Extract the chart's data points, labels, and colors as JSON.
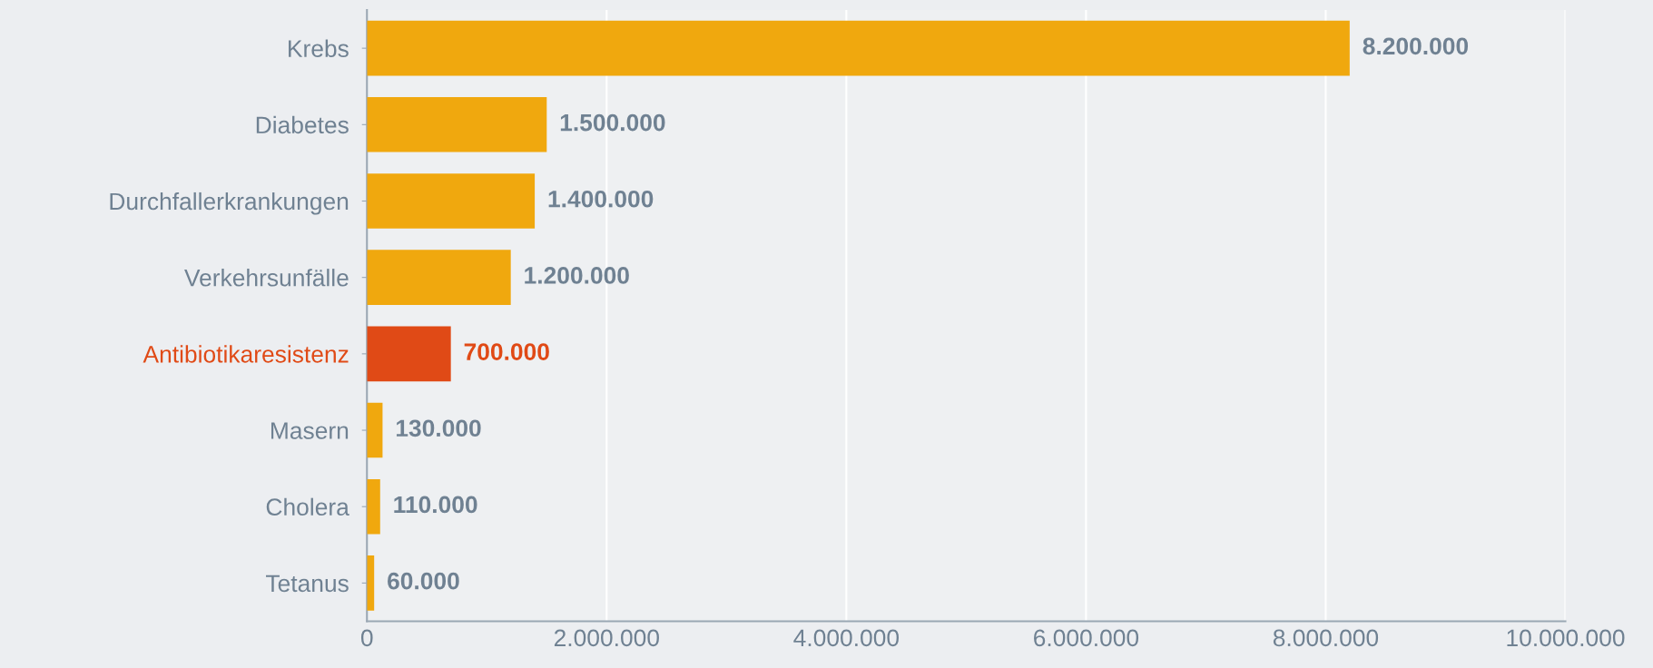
{
  "chart_data": {
    "type": "bar",
    "orientation": "horizontal",
    "categories": [
      "Krebs",
      "Diabetes",
      "Durchfallerkrankungen",
      "Verkehrsunfälle",
      "Antibiotikaresistenz",
      "Masern",
      "Cholera",
      "Tetanus"
    ],
    "values": [
      8200000,
      1500000,
      1400000,
      1200000,
      700000,
      130000,
      110000,
      60000
    ],
    "colors": [
      "#f0a80e",
      "#f0a80e",
      "#f0a80e",
      "#f0a80e",
      "#e04a16",
      "#f0a80e",
      "#f0a80e",
      "#f0a80e"
    ],
    "value_labels": [
      "8.200.000",
      "1.500.000",
      "1.400.000",
      "1.200.000",
      "700.000",
      "130.000",
      "110.000",
      "60.000"
    ],
    "xlim": [
      0,
      10000000
    ],
    "xticks": [
      0,
      {
        "value": 2000000,
        "label": "2.000.000"
      },
      {
        "value": 4000000,
        "label": "4.000.000"
      },
      {
        "value": 6000000,
        "label": "6.000.000"
      },
      {
        "value": 8000000,
        "label": "8.000.000"
      },
      {
        "value": 10000000,
        "label": "10.000.000"
      }
    ],
    "grid": "x"
  }
}
